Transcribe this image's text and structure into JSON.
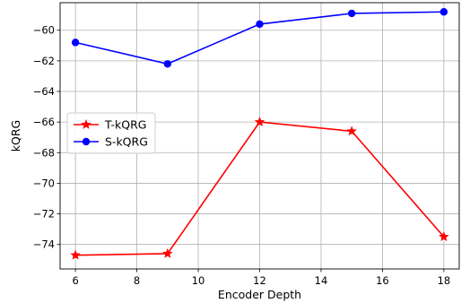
{
  "chart_data": {
    "type": "line",
    "title": "",
    "xlabel": "Encoder Depth",
    "ylabel": "kQRG",
    "xlim": [
      5.5,
      18.5
    ],
    "ylim": [
      -75.6,
      -58.2
    ],
    "xticks": [
      6,
      8,
      10,
      12,
      14,
      16,
      18
    ],
    "yticks": [
      -74,
      -72,
      -70,
      -68,
      -66,
      -64,
      -62,
      -60
    ],
    "grid": true,
    "legend_position": "center-left",
    "x": [
      6,
      9,
      12,
      15,
      18
    ],
    "series": [
      {
        "name": "T-kQRG",
        "color": "#ff0000",
        "marker": "star",
        "values": [
          -74.7,
          -74.6,
          -66.0,
          -66.6,
          -73.5
        ]
      },
      {
        "name": "S-kQRG",
        "color": "#0000ff",
        "marker": "circle",
        "values": [
          -60.8,
          -62.2,
          -59.6,
          -58.9,
          -58.8
        ]
      }
    ]
  }
}
